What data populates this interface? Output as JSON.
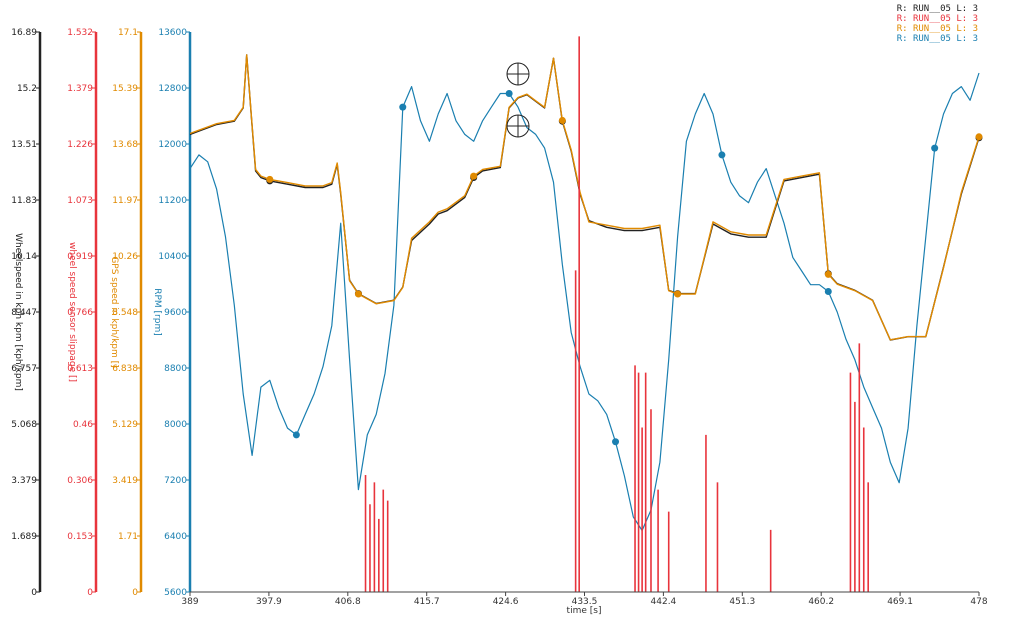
{
  "chart_data": {
    "type": "line",
    "xlabel": "time [s]",
    "xlim": [
      389,
      478
    ],
    "x_ticks": [
      "389",
      "397.9",
      "406.8",
      "415.7",
      "424.6",
      "433.5",
      "442.4",
      "451.3",
      "460.2",
      "469.1",
      "478"
    ],
    "legend": [
      {
        "text": "R: RUN__05 L: 3",
        "color": "#222222"
      },
      {
        "text": "R: RUN__05 L: 3",
        "color": "#e8343c"
      },
      {
        "text": "R: RUN__05 L: 3",
        "color": "#e08a00"
      },
      {
        "text": "R: RUN__05 L: 3",
        "color": "#1a7fb0"
      }
    ],
    "axes": [
      {
        "label": "Wheelspeed in kph kpm [kph/kpm]",
        "color": "#222222",
        "ylim": [
          0,
          16.89
        ],
        "ticks": [
          "0",
          "1.689",
          "3.379",
          "5.068",
          "6.757",
          "8.447",
          "10.14",
          "11.83",
          "13.51",
          "15.2",
          "16.89"
        ]
      },
      {
        "label": "wheel speed sensor slippage []",
        "color": "#e8343c",
        "ylim": [
          0,
          1.532
        ],
        "ticks": [
          "0",
          "0.153",
          "0.306",
          "0.46",
          "0.613",
          "0.766",
          "0.919",
          "1.073",
          "1.226",
          "1.379",
          "1.532"
        ]
      },
      {
        "label": "GPS speed in kph/kpm []",
        "color": "#e08a00",
        "ylim": [
          0,
          17.1
        ],
        "ticks": [
          "0",
          "1.71",
          "3.419",
          "5.129",
          "6.838",
          "8.548",
          "10.26",
          "11.97",
          "13.68",
          "15.39",
          "17.1"
        ]
      },
      {
        "label": "RPM [rpm]",
        "color": "#1a7fb0",
        "ylim": [
          5600,
          13800
        ],
        "ticks": [
          "5600",
          "6400",
          "7200",
          "8000",
          "8800",
          "9600",
          "10400",
          "11200",
          "12000",
          "12800",
          "13600"
        ]
      }
    ],
    "series": [
      {
        "axis": 3,
        "color": "#1a7fb0",
        "x": [
          389,
          390,
          391,
          392,
          393,
          394,
          395,
          396,
          397,
          398,
          399,
          400,
          401,
          402,
          403,
          404,
          405,
          406,
          407,
          408,
          409,
          410,
          411,
          412,
          413,
          414,
          415,
          416,
          417,
          418,
          419,
          420,
          421,
          422,
          423,
          424,
          425,
          426,
          427,
          428,
          429,
          430,
          431,
          432,
          433,
          434,
          435,
          436,
          437,
          438,
          439,
          440,
          441,
          442,
          443,
          444,
          445,
          446,
          447,
          448,
          449,
          450,
          451,
          452,
          453,
          454,
          455,
          456,
          457,
          458,
          459,
          460,
          461,
          462,
          463,
          464,
          465,
          466,
          467,
          468,
          469,
          470,
          471,
          472,
          473,
          474,
          475,
          476,
          477,
          478
        ],
        "y": [
          11800,
          12000,
          11900,
          11500,
          10800,
          9800,
          8500,
          7600,
          8600,
          8700,
          8300,
          8000,
          7900,
          8200,
          8500,
          8900,
          9500,
          11000,
          9000,
          7100,
          7900,
          8200,
          8800,
          9800,
          12700,
          13000,
          12500,
          12200,
          12600,
          12900,
          12500,
          12300,
          12200,
          12500,
          12700,
          12900,
          12900,
          12700,
          12400,
          12300,
          12100,
          11600,
          10400,
          9400,
          8900,
          8500,
          8400,
          8200,
          7800,
          7300,
          6700,
          6500,
          6800,
          7500,
          9000,
          10800,
          12200,
          12600,
          12900,
          12600,
          12000,
          11600,
          11400,
          11300,
          11600,
          11800,
          11400,
          11000,
          10500,
          10300,
          10100,
          10100,
          10000,
          9700,
          9300,
          9000,
          8600,
          8300,
          8000,
          7500,
          7200,
          8000,
          9500,
          10800,
          12100,
          12600,
          12900,
          13000,
          12800,
          13200
        ]
      },
      {
        "axis": 0,
        "color": "#222222",
        "x": [
          389,
          390,
          392,
          394,
          395,
          395.4,
          395.9,
          396.4,
          397,
          398,
          400,
          402,
          404,
          405,
          405.6,
          406,
          407,
          407.5,
          408,
          410,
          412,
          413,
          414,
          416,
          417,
          418,
          420,
          421,
          422,
          424,
          425,
          426,
          427,
          428,
          429,
          430,
          431,
          432,
          433,
          434,
          436,
          438,
          440,
          442,
          443,
          444,
          446,
          448,
          450,
          452,
          454,
          456,
          458,
          460,
          461,
          462,
          464,
          466,
          468,
          470,
          472,
          474,
          476,
          478
        ],
        "y": [
          13.8,
          13.9,
          14.1,
          14.2,
          14.6,
          16.2,
          14.4,
          12.7,
          12.5,
          12.4,
          12.3,
          12.2,
          12.2,
          12.3,
          12.9,
          12.0,
          9.4,
          9.2,
          9.0,
          8.7,
          8.8,
          9.2,
          10.6,
          11.1,
          11.4,
          11.5,
          11.9,
          12.5,
          12.7,
          12.8,
          14.6,
          14.9,
          15.0,
          14.8,
          14.6,
          16.1,
          14.2,
          13.3,
          12.0,
          11.2,
          11.0,
          10.9,
          10.9,
          11.0,
          9.1,
          9.0,
          9.0,
          11.1,
          10.8,
          10.7,
          10.7,
          12.4,
          12.5,
          12.6,
          9.6,
          9.3,
          9.1,
          8.8,
          7.6,
          7.7,
          7.7,
          9.8,
          12.0,
          13.7
        ]
      },
      {
        "axis": 2,
        "color": "#e08a00",
        "x": [
          389,
          390,
          392,
          394,
          395,
          395.4,
          395.9,
          396.4,
          397,
          398,
          400,
          402,
          404,
          405,
          405.6,
          406,
          407,
          407.5,
          408,
          410,
          412,
          413,
          414,
          416,
          417,
          418,
          420,
          421,
          422,
          424,
          425,
          426,
          427,
          428,
          429,
          430,
          431,
          432,
          433,
          434,
          436,
          438,
          440,
          442,
          443,
          444,
          446,
          448,
          450,
          452,
          454,
          456,
          458,
          460,
          461,
          462,
          464,
          466,
          468,
          470,
          472,
          474,
          476,
          478
        ],
        "y": [
          14.0,
          14.1,
          14.3,
          14.4,
          14.8,
          16.4,
          14.6,
          12.9,
          12.7,
          12.6,
          12.5,
          12.4,
          12.4,
          12.5,
          13.1,
          12.2,
          9.5,
          9.3,
          9.1,
          8.8,
          8.9,
          9.3,
          10.8,
          11.3,
          11.6,
          11.7,
          12.1,
          12.7,
          12.9,
          13.0,
          14.8,
          15.1,
          15.2,
          15.0,
          14.8,
          16.3,
          14.4,
          13.5,
          12.2,
          11.3,
          11.2,
          11.1,
          11.1,
          11.2,
          9.2,
          9.1,
          9.1,
          11.3,
          11.0,
          10.9,
          10.9,
          12.6,
          12.7,
          12.8,
          9.7,
          9.4,
          9.2,
          8.9,
          7.7,
          7.8,
          7.8,
          9.9,
          12.2,
          13.9
        ]
      },
      {
        "axis": 1,
        "color": "#e8343c",
        "style": "spikes",
        "x": [
          408.8,
          409.3,
          409.8,
          410.3,
          410.8,
          411.3,
          432.5,
          432.9,
          439.2,
          439.6,
          440.0,
          440.4,
          441.0,
          441.8,
          443.0,
          447.2,
          448.5,
          454.5,
          463.5,
          464.0,
          464.5,
          465.0,
          465.5
        ],
        "y": [
          0.32,
          0.24,
          0.3,
          0.2,
          0.28,
          0.25,
          0.88,
          1.52,
          0.62,
          0.6,
          0.45,
          0.6,
          0.5,
          0.28,
          0.22,
          0.43,
          0.3,
          0.17,
          0.6,
          0.52,
          0.68,
          0.45,
          0.3
        ]
      }
    ]
  }
}
